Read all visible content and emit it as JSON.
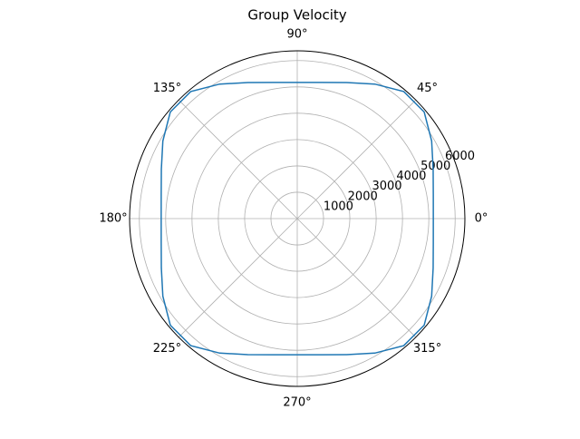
{
  "chart_data": {
    "type": "polar",
    "title": "Group Velocity",
    "theta": [
      0,
      10,
      20,
      30,
      40,
      50,
      60,
      70,
      80,
      90,
      100,
      110,
      120,
      130,
      140,
      150,
      160,
      170,
      180,
      190,
      200,
      210,
      220,
      230,
      240,
      250,
      260,
      270,
      280,
      290,
      300,
      310,
      320,
      330,
      340,
      350,
      360
    ],
    "values": [
      5170,
      5249,
      5495,
      5896,
      6296,
      6296,
      5896,
      5495,
      5249,
      5170,
      5249,
      5495,
      5896,
      6296,
      6296,
      5896,
      5495,
      5249,
      5170,
      5249,
      5495,
      5896,
      6296,
      6296,
      5896,
      5495,
      5249,
      5170,
      5249,
      5495,
      5896,
      6296,
      6296,
      5896,
      5495,
      5249,
      5170
    ],
    "color": "#1f77b4",
    "rlim": [
      0,
      6370
    ],
    "rticks": [
      1000,
      2000,
      3000,
      4000,
      5000,
      6000
    ],
    "thetaticks": [
      {
        "value": 0,
        "label": "0°"
      },
      {
        "value": 45,
        "label": "45°"
      },
      {
        "value": 90,
        "label": "90°"
      },
      {
        "value": 135,
        "label": "135°"
      },
      {
        "value": 180,
        "label": "180°"
      },
      {
        "value": 225,
        "label": "225°"
      },
      {
        "value": 270,
        "label": "270°"
      },
      {
        "value": 315,
        "label": "315°"
      }
    ],
    "grid": true
  }
}
